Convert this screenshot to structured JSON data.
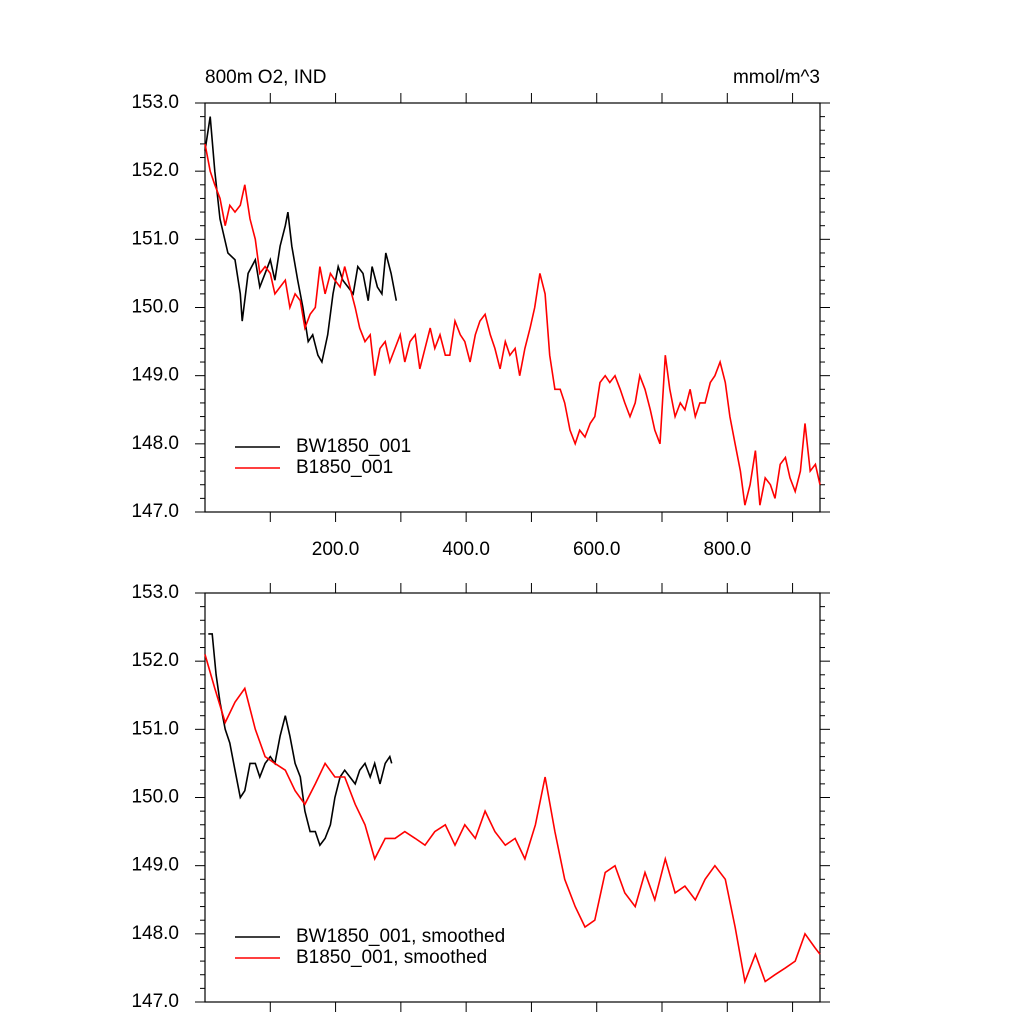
{
  "chart_data": [
    {
      "type": "line",
      "title": "800m O2, IND",
      "units": "mmol/m^3",
      "xlim": [
        0,
        942
      ],
      "ylim": [
        147,
        153
      ],
      "xticks": [
        {
          "value": 200,
          "label": "200.0"
        },
        {
          "value": 400,
          "label": "400.0"
        },
        {
          "value": 600,
          "label": "600.0"
        },
        {
          "value": 800,
          "label": "800.0"
        }
      ],
      "yticks": [
        {
          "value": 147,
          "label": "147.0"
        },
        {
          "value": 148,
          "label": "148.0"
        },
        {
          "value": 149,
          "label": "149.0"
        },
        {
          "value": 150,
          "label": "150.0"
        },
        {
          "value": 151,
          "label": "151.0"
        },
        {
          "value": 152,
          "label": "152.0"
        },
        {
          "value": 153,
          "label": "153.0"
        }
      ],
      "legend": "lower left",
      "series": [
        {
          "name": "BW1850_001",
          "color": "#000000",
          "x": [
            0,
            8,
            15,
            23,
            35,
            46,
            54,
            57,
            66,
            77,
            84,
            92,
            100,
            107,
            115,
            123,
            127,
            133,
            142,
            150,
            158,
            165,
            173,
            179,
            188,
            196,
            204,
            211,
            219,
            227,
            234,
            242,
            250,
            256,
            264,
            271,
            277,
            285,
            291,
            293
          ],
          "values": [
            152.3,
            152.8,
            152.0,
            151.3,
            150.8,
            150.7,
            150.2,
            149.8,
            150.5,
            150.7,
            150.3,
            150.5,
            150.7,
            150.4,
            150.9,
            151.2,
            151.4,
            150.9,
            150.4,
            150.0,
            149.5,
            149.6,
            149.3,
            149.2,
            149.6,
            150.2,
            150.6,
            150.4,
            150.3,
            150.2,
            150.6,
            150.5,
            150.1,
            150.6,
            150.3,
            150.2,
            150.8,
            150.5,
            150.2,
            150.1
          ]
        },
        {
          "name": "B1850_001",
          "color": "#ff0000",
          "x": [
            0,
            8,
            15,
            23,
            31,
            38,
            46,
            54,
            61,
            69,
            77,
            84,
            92,
            100,
            107,
            115,
            123,
            130,
            138,
            146,
            153,
            161,
            169,
            176,
            184,
            192,
            199,
            207,
            214,
            222,
            230,
            237,
            245,
            253,
            260,
            268,
            276,
            283,
            291,
            299,
            306,
            314,
            322,
            329,
            337,
            345,
            352,
            360,
            368,
            375,
            383,
            391,
            398,
            406,
            414,
            421,
            429,
            437,
            444,
            452,
            460,
            467,
            475,
            482,
            490,
            498,
            505,
            513,
            521,
            528,
            536,
            544,
            551,
            559,
            567,
            574,
            582,
            590,
            597,
            605,
            613,
            620,
            628,
            636,
            643,
            651,
            659,
            666,
            674,
            682,
            689,
            697,
            705,
            712,
            720,
            728,
            735,
            743,
            751,
            758,
            766,
            774,
            781,
            789,
            797,
            804,
            812,
            820,
            827,
            835,
            843,
            850,
            858,
            866,
            873,
            881,
            889,
            896,
            904,
            912,
            919,
            927,
            935,
            942
          ],
          "values": [
            152.4,
            152.0,
            151.8,
            151.6,
            151.2,
            151.5,
            151.4,
            151.5,
            151.8,
            151.3,
            151.0,
            150.5,
            150.6,
            150.5,
            150.2,
            150.3,
            150.4,
            150.0,
            150.2,
            150.1,
            149.7,
            149.9,
            150.0,
            150.6,
            150.2,
            150.5,
            150.4,
            150.3,
            150.6,
            150.3,
            150.0,
            149.7,
            149.5,
            149.6,
            149.0,
            149.4,
            149.5,
            149.2,
            149.4,
            149.6,
            149.2,
            149.5,
            149.6,
            149.1,
            149.4,
            149.7,
            149.4,
            149.6,
            149.3,
            149.3,
            149.8,
            149.6,
            149.5,
            149.2,
            149.6,
            149.8,
            149.9,
            149.6,
            149.4,
            149.1,
            149.5,
            149.3,
            149.4,
            149.0,
            149.4,
            149.7,
            150.0,
            150.5,
            150.2,
            149.3,
            148.8,
            148.8,
            148.6,
            148.2,
            148.0,
            148.2,
            148.1,
            148.3,
            148.4,
            148.9,
            149.0,
            148.9,
            149.0,
            148.8,
            148.6,
            148.4,
            148.6,
            149.0,
            148.8,
            148.5,
            148.2,
            148.0,
            149.3,
            148.8,
            148.4,
            148.6,
            148.5,
            148.8,
            148.4,
            148.6,
            148.6,
            148.9,
            149.0,
            149.2,
            148.9,
            148.4,
            148.0,
            147.6,
            147.1,
            147.4,
            147.9,
            147.1,
            147.5,
            147.4,
            147.2,
            147.7,
            147.8,
            147.5,
            147.3,
            147.6,
            148.3,
            147.6,
            147.7,
            147.4
          ]
        }
      ]
    },
    {
      "type": "line",
      "xlim": [
        0,
        942
      ],
      "ylim": [
        147,
        153
      ],
      "xticks": [
        200,
        400,
        600,
        800
      ],
      "yticks": [
        {
          "value": 147,
          "label": "147.0"
        },
        {
          "value": 148,
          "label": "148.0"
        },
        {
          "value": 149,
          "label": "149.0"
        },
        {
          "value": 150,
          "label": "150.0"
        },
        {
          "value": 151,
          "label": "151.0"
        },
        {
          "value": 152,
          "label": "152.0"
        },
        {
          "value": 153,
          "label": "153.0"
        }
      ],
      "legend": "lower left",
      "series": [
        {
          "name": "BW1850_001, smoothed",
          "color": "#000000",
          "x": [
            5,
            11,
            17,
            23,
            31,
            38,
            46,
            54,
            61,
            69,
            77,
            84,
            92,
            100,
            107,
            115,
            123,
            130,
            138,
            146,
            153,
            161,
            169,
            176,
            184,
            192,
            199,
            207,
            214,
            222,
            230,
            237,
            245,
            253,
            260,
            268,
            276,
            283,
            286
          ],
          "values": [
            152.4,
            152.4,
            151.8,
            151.4,
            151.0,
            150.8,
            150.4,
            150.0,
            150.1,
            150.5,
            150.5,
            150.3,
            150.5,
            150.6,
            150.5,
            150.9,
            151.2,
            150.9,
            150.5,
            150.3,
            149.8,
            149.5,
            149.5,
            149.3,
            149.4,
            149.6,
            150.0,
            150.3,
            150.4,
            150.3,
            150.2,
            150.4,
            150.5,
            150.3,
            150.5,
            150.2,
            150.5,
            150.6,
            150.5
          ]
        },
        {
          "name": "B1850_001, smoothed",
          "color": "#ff0000",
          "x": [
            0,
            15,
            31,
            46,
            61,
            77,
            92,
            107,
            123,
            138,
            153,
            169,
            184,
            199,
            214,
            230,
            245,
            260,
            276,
            291,
            306,
            322,
            337,
            352,
            368,
            383,
            398,
            414,
            429,
            444,
            460,
            475,
            490,
            506,
            521,
            536,
            551,
            567,
            582,
            597,
            613,
            628,
            643,
            659,
            674,
            689,
            705,
            720,
            735,
            751,
            766,
            781,
            797,
            812,
            827,
            843,
            858,
            873,
            889,
            904,
            919,
            934,
            942
          ],
          "values": [
            152.1,
            151.6,
            151.1,
            151.4,
            151.6,
            151.0,
            150.6,
            150.5,
            150.4,
            150.1,
            149.9,
            150.2,
            150.5,
            150.3,
            150.3,
            149.9,
            149.6,
            149.1,
            149.4,
            149.4,
            149.5,
            149.4,
            149.3,
            149.5,
            149.6,
            149.3,
            149.6,
            149.4,
            149.8,
            149.5,
            149.3,
            149.4,
            149.1,
            149.6,
            150.3,
            149.5,
            148.8,
            148.4,
            148.1,
            148.2,
            148.9,
            149.0,
            148.6,
            148.4,
            148.9,
            148.5,
            149.1,
            148.6,
            148.7,
            148.5,
            148.8,
            149.0,
            148.8,
            148.1,
            147.3,
            147.7,
            147.3,
            147.4,
            147.5,
            147.6,
            148.0,
            147.8,
            147.7
          ]
        }
      ]
    }
  ]
}
